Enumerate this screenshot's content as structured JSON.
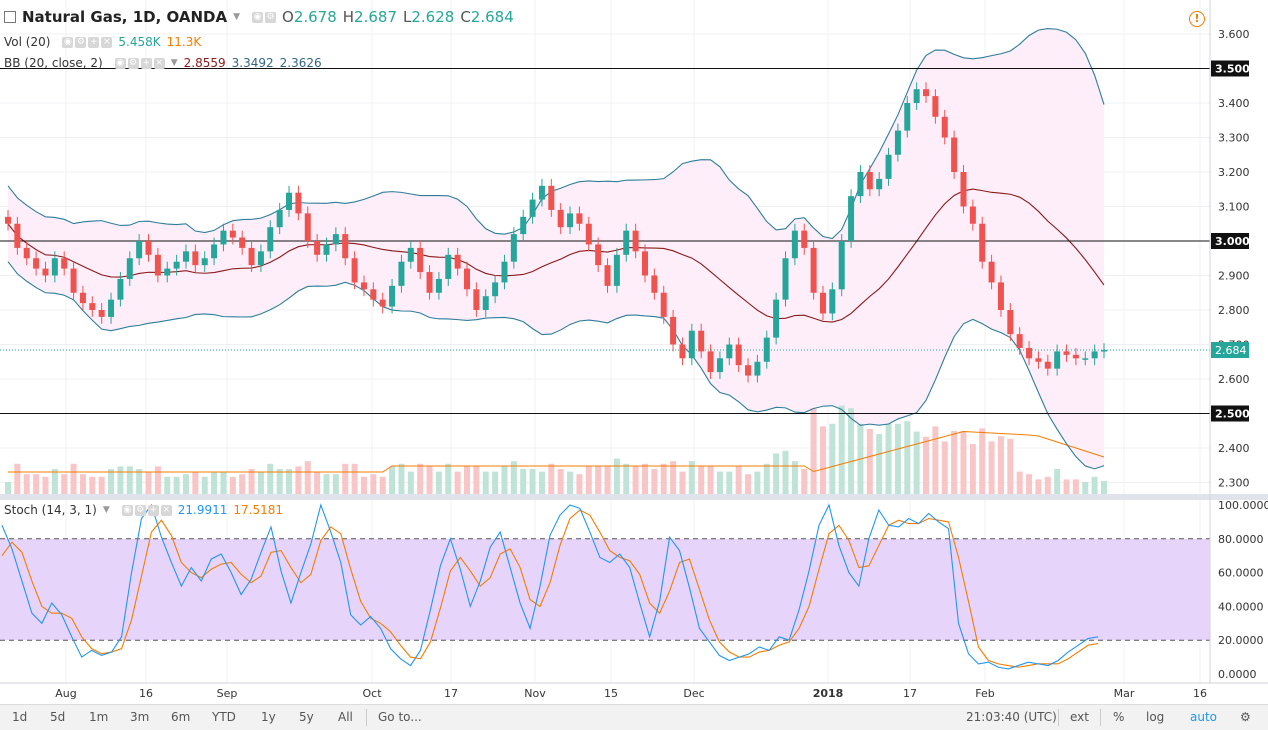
{
  "header": {
    "symbol": "Natural Gas, 1D, OANDA",
    "o_label": "O",
    "o_value": "2.678",
    "h_label": "H",
    "h_value": "2.687",
    "l_label": "L",
    "l_value": "2.628",
    "c_label": "C",
    "c_value": "2.684"
  },
  "indicators": {
    "vol": {
      "label": "Vol (20)",
      "v1": "5.458K",
      "v2": "11.3K"
    },
    "bb": {
      "label": "BB (20, close, 2)",
      "v1": "2.8559",
      "v2": "3.3492",
      "v3": "2.3626"
    },
    "stoch": {
      "label": "Stoch (14, 3, 1)",
      "k": "21.9911",
      "d": "17.5181"
    }
  },
  "colors": {
    "up": "#26a69a",
    "down": "#ef5350",
    "bb_band": "#2e7d9a",
    "bb_mid": "#8b1a1a",
    "bb_fill": "#fdeef9",
    "stoch_k": "#2196f3",
    "stoch_d": "#f57c00",
    "stoch_fill": "#e7d4fa",
    "vol_ma": "#f57c00",
    "vol_up": "#bfe3d6",
    "vol_down": "#f8c6c6"
  },
  "chart_data": {
    "type": "candlestick",
    "price_axis": {
      "ticks": [
        "3.600",
        "3.500",
        "3.400",
        "3.300",
        "3.200",
        "3.100",
        "3.000",
        "2.900",
        "2.800",
        "2.700",
        "2.600",
        "2.500",
        "2.400",
        "2.300"
      ],
      "range": [
        2.28,
        3.64
      ]
    },
    "horizontal_levels": [
      {
        "value": 3.5,
        "label": "3.500"
      },
      {
        "value": 3.0,
        "label": "3.000"
      },
      {
        "value": 2.5,
        "label": "2.500"
      }
    ],
    "last_price": {
      "value": 2.684,
      "label": "2.684"
    },
    "stoch_axis": {
      "ticks": [
        "100.0000",
        "80.0000",
        "60.0000",
        "40.0000",
        "20.0000",
        "0.0000"
      ],
      "range": [
        0,
        100
      ],
      "upper_band": 80,
      "lower_band": 20
    },
    "time_axis": [
      "Aug",
      "16",
      "Sep",
      "Oct",
      "17",
      "Nov",
      "15",
      "Dec",
      "2018",
      "17",
      "Feb",
      "Mar",
      "16"
    ],
    "closes": [
      3.05,
      2.98,
      2.95,
      2.92,
      2.9,
      2.95,
      2.92,
      2.85,
      2.82,
      2.8,
      2.78,
      2.83,
      2.89,
      2.95,
      3.0,
      2.96,
      2.9,
      2.92,
      2.94,
      2.97,
      2.93,
      2.95,
      2.99,
      3.03,
      3.01,
      2.98,
      2.93,
      2.97,
      3.04,
      3.09,
      3.14,
      3.08,
      3.0,
      2.96,
      2.99,
      3.02,
      2.95,
      2.88,
      2.86,
      2.83,
      2.81,
      2.87,
      2.94,
      2.98,
      2.91,
      2.85,
      2.89,
      2.96,
      2.92,
      2.86,
      2.8,
      2.84,
      2.88,
      2.94,
      3.02,
      3.07,
      3.12,
      3.16,
      3.09,
      3.04,
      3.08,
      3.05,
      2.99,
      2.93,
      2.87,
      2.96,
      3.03,
      2.97,
      2.9,
      2.85,
      2.78,
      2.7,
      2.66,
      2.74,
      2.68,
      2.62,
      2.66,
      2.7,
      2.64,
      2.61,
      2.65,
      2.72,
      2.83,
      2.95,
      3.03,
      2.98,
      2.85,
      2.79,
      2.86,
      3.0,
      3.13,
      3.2,
      3.15,
      3.18,
      3.25,
      3.32,
      3.4,
      3.44,
      3.42,
      3.36,
      3.3,
      3.2,
      3.1,
      3.05,
      2.94,
      2.88,
      2.8,
      2.73,
      2.69,
      2.66,
      2.65,
      2.63,
      2.68,
      2.67,
      2.66,
      2.66,
      2.68,
      2.684
    ],
    "volume_axis_max": 11300,
    "stoch_k": [
      88,
      74,
      55,
      36,
      30,
      42,
      35,
      22,
      10,
      14,
      11,
      13,
      22,
      60,
      92,
      100,
      81,
      66,
      52,
      63,
      55,
      68,
      71,
      60,
      47,
      56,
      72,
      87,
      61,
      42,
      60,
      77,
      100,
      84,
      66,
      35,
      29,
      34,
      27,
      15,
      9,
      5,
      14,
      38,
      64,
      80,
      62,
      40,
      55,
      75,
      84,
      63,
      42,
      27,
      52,
      82,
      94,
      100,
      98,
      84,
      69,
      66,
      71,
      63,
      42,
      22,
      43,
      81,
      73,
      51,
      27,
      19,
      11,
      8,
      10,
      12,
      16,
      14,
      22,
      20,
      38,
      61,
      88,
      100,
      76,
      60,
      52,
      80,
      97,
      88,
      87,
      92,
      89,
      95,
      90,
      86,
      30,
      12,
      6,
      7,
      4,
      3,
      5,
      7,
      6,
      5,
      8,
      13,
      17,
      21,
      22
    ],
    "stoch_d": [
      70,
      78,
      72,
      55,
      40,
      36,
      36,
      33,
      22,
      15,
      12,
      13,
      15,
      32,
      58,
      84,
      91,
      82,
      66,
      60,
      57,
      62,
      65,
      66,
      59,
      54,
      58,
      72,
      73,
      63,
      54,
      59,
      79,
      87,
      83,
      62,
      43,
      33,
      30,
      25,
      17,
      10,
      9,
      19,
      39,
      61,
      69,
      61,
      52,
      57,
      71,
      74,
      63,
      44,
      40,
      54,
      76,
      92,
      97,
      94,
      84,
      73,
      69,
      67,
      59,
      42,
      36,
      49,
      66,
      68,
      50,
      32,
      19,
      13,
      10,
      10,
      13,
      14,
      17,
      19,
      27,
      40,
      62,
      83,
      88,
      79,
      63,
      64,
      76,
      88,
      91,
      89,
      89,
      92,
      91,
      90,
      69,
      43,
      16,
      8,
      6,
      5,
      4,
      5,
      6,
      6,
      6,
      9,
      13,
      17,
      18
    ]
  }
}
